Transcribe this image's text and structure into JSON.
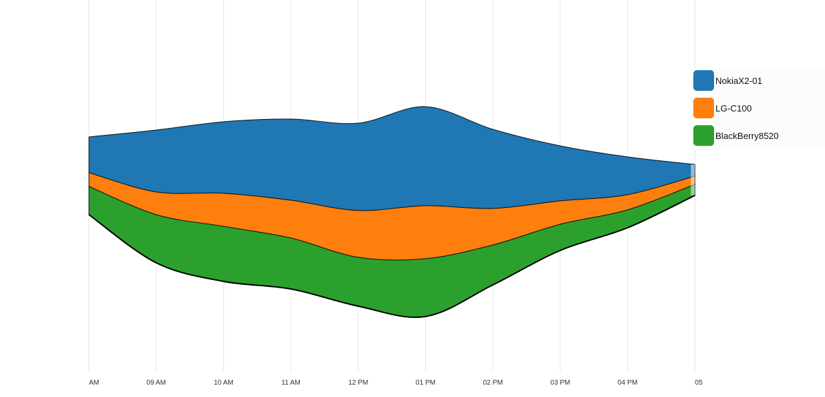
{
  "chart_data": {
    "type": "area",
    "subtype": "streamgraph",
    "x_axis": {
      "tick_labels": [
        "AM",
        "09 AM",
        "10 AM",
        "11 AM",
        "12 PM",
        "01 PM",
        "02 PM",
        "03 PM",
        "04 PM",
        "05"
      ]
    },
    "grid": "vertical",
    "legend": {
      "placement": "right"
    },
    "baseline": [
      -59,
      -69,
      -81,
      -85,
      -79,
      -103,
      -70,
      -46,
      -30,
      -19
    ],
    "series": [
      {
        "name": "NokiaX2-01",
        "color": "#1f77b4",
        "values": [
          52,
          90,
          104,
          118,
          127,
          144,
          115,
          80,
          55,
          17
        ]
      },
      {
        "name": "LG-C100",
        "color": "#ff7f0e",
        "values": [
          20,
          33,
          48,
          55,
          68,
          77,
          53,
          34,
          22,
          12
        ]
      },
      {
        "name": "BlackBerry8520",
        "color": "#2ca02c",
        "values": [
          41,
          70,
          80,
          74,
          71,
          84,
          58,
          38,
          26,
          16
        ]
      }
    ]
  }
}
